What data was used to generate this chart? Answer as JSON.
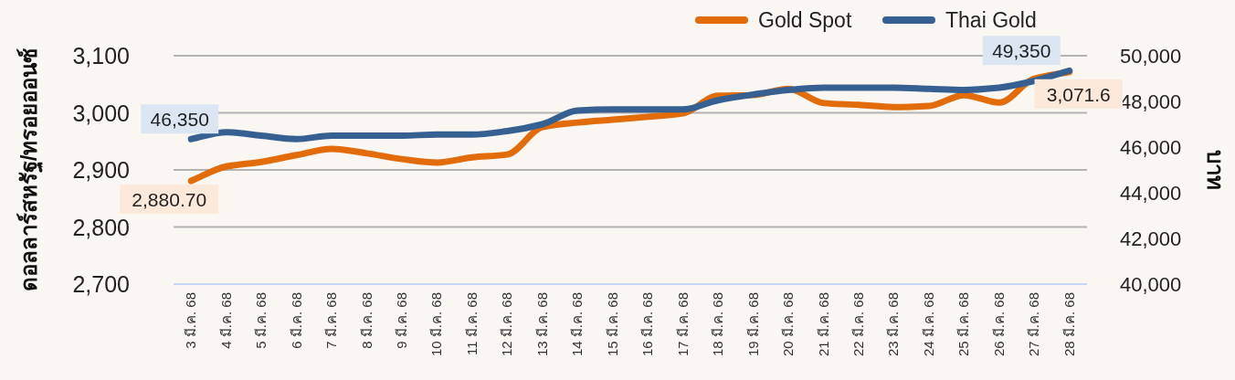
{
  "chart_data": {
    "type": "line",
    "categories": [
      "3 มี.ค. 68",
      "4 มี.ค. 68",
      "5 มี.ค. 68",
      "6 มี.ค. 68",
      "7 มี.ค. 68",
      "8 มี.ค. 68",
      "9 มี.ค. 68",
      "10 มี.ค. 68",
      "11 มี.ค. 68",
      "12 มี.ค. 68",
      "13 มี.ค. 68",
      "14 มี.ค. 68",
      "15 มี.ค. 68",
      "16 มี.ค. 68",
      "17 มี.ค. 68",
      "18 มี.ค. 68",
      "19 มี.ค. 68",
      "20 มี.ค. 68",
      "21 มี.ค. 68",
      "22 มี.ค. 68",
      "23 มี.ค. 68",
      "24 มี.ค. 68",
      "25 มี.ค. 68",
      "26 มี.ค. 68",
      "27 มี.ค. 68",
      "28 มี.ค. 68"
    ],
    "series": [
      {
        "name": "Gold Spot",
        "color": "#e36c0a",
        "axis": "y",
        "values": [
          2880.7,
          2906,
          2914,
          2926,
          2937,
          2929,
          2919,
          2913,
          2922,
          2927,
          2975,
          2983,
          2988,
          2993,
          2999,
          3030,
          3031,
          3042,
          3017,
          3014,
          3010,
          3012,
          3031,
          3018,
          3060,
          3071.6
        ],
        "value_labels": [
          "2,880.70",
          null,
          null,
          null,
          null,
          null,
          null,
          null,
          null,
          null,
          null,
          null,
          null,
          null,
          null,
          null,
          null,
          null,
          null,
          null,
          null,
          null,
          null,
          null,
          null,
          "3,071.6"
        ]
      },
      {
        "name": "Thai Gold",
        "color": "#366092",
        "axis": "y2",
        "values": [
          46350,
          46650,
          46500,
          46350,
          46500,
          46500,
          46500,
          46550,
          46550,
          46700,
          47000,
          47600,
          47650,
          47650,
          47650,
          48050,
          48300,
          48500,
          48600,
          48600,
          48600,
          48550,
          48500,
          48600,
          48900,
          49350
        ],
        "value_labels": [
          "46,350",
          null,
          null,
          null,
          null,
          null,
          null,
          null,
          null,
          null,
          null,
          null,
          null,
          null,
          null,
          null,
          null,
          null,
          null,
          null,
          null,
          null,
          null,
          null,
          null,
          "49,350"
        ]
      }
    ],
    "ylabel": "ดอลลาร์สหรัฐ/ทรอยออนซ์",
    "y2label": "บาท",
    "ylim": [
      2700,
      3100
    ],
    "yticks": [
      {
        "value": 2700,
        "label": "2,700"
      },
      {
        "value": 2800,
        "label": "2,800"
      },
      {
        "value": 2900,
        "label": "2,900"
      },
      {
        "value": 3000,
        "label": "3,000"
      },
      {
        "value": 3100,
        "label": "3,100"
      }
    ],
    "y2lim": [
      40000,
      50000
    ],
    "y2ticks": [
      {
        "value": 40000,
        "label": "40,000"
      },
      {
        "value": 42000,
        "label": "42,000"
      },
      {
        "value": 44000,
        "label": "44,000"
      },
      {
        "value": 46000,
        "label": "46,000"
      },
      {
        "value": 48000,
        "label": "48,000"
      },
      {
        "value": 50000,
        "label": "50,000"
      }
    ],
    "grid": "y",
    "legend": "top right"
  }
}
